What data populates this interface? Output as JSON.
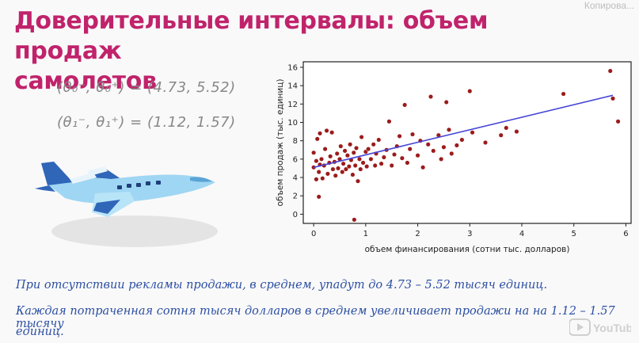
{
  "slide": {
    "title_line1": "Доверительные интервалы: объем продаж",
    "title_line2": "самолетов",
    "corner_label": "Копирова...",
    "formula_1": "(θ₀⁻, θ₀⁺) = (4.73, 5.52)",
    "formula_2": "(θ₁⁻, θ₁⁺) = (1.12, 1.57)",
    "note_line1": "При отсутствии рекламы продажи, в среднем, упадут до 4.73 – 5.52 тысяч единиц.",
    "note_line2": "Каждая потраченная сотня тысяч долларов в среднем увеличивает продажи на на 1.12 – 1.57 тысячу",
    "note_line3": "единиц.",
    "watermark": "YouTube",
    "colors": {
      "title": "#c0236b",
      "note": "#2c4fa3",
      "points": "#9b1b1b",
      "line": "#4646d6"
    },
    "plane_icon": "airplane-illustration"
  },
  "chart_data": {
    "type": "scatter",
    "title": "",
    "xlabel": "объем финансирования (сотни тыс. долларов)",
    "ylabel": "объем продаж (тыс. единиц)",
    "xlim": [
      -0.2,
      6.1
    ],
    "ylim": [
      -1,
      16.6
    ],
    "xticks": [
      0,
      1,
      2,
      3,
      4,
      5,
      6
    ],
    "yticks": [
      0,
      2,
      4,
      6,
      8,
      10,
      12,
      14,
      16
    ],
    "grid": false,
    "series": [
      {
        "points": [
          [
            0.0,
            5.1
          ],
          [
            0.0,
            6.7
          ],
          [
            0.05,
            3.8
          ],
          [
            0.05,
            5.8
          ],
          [
            0.07,
            8.2
          ],
          [
            0.1,
            1.9
          ],
          [
            0.1,
            4.6
          ],
          [
            0.12,
            5.4
          ],
          [
            0.12,
            8.8
          ],
          [
            0.15,
            6.0
          ],
          [
            0.17,
            3.9
          ],
          [
            0.2,
            5.3
          ],
          [
            0.22,
            7.1
          ],
          [
            0.25,
            9.1
          ],
          [
            0.27,
            4.4
          ],
          [
            0.3,
            5.6
          ],
          [
            0.32,
            6.3
          ],
          [
            0.35,
            8.9
          ],
          [
            0.37,
            4.9
          ],
          [
            0.4,
            5.7
          ],
          [
            0.42,
            4.2
          ],
          [
            0.45,
            6.6
          ],
          [
            0.47,
            5.0
          ],
          [
            0.5,
            6.0
          ],
          [
            0.52,
            7.4
          ],
          [
            0.55,
            4.6
          ],
          [
            0.57,
            5.5
          ],
          [
            0.6,
            6.9
          ],
          [
            0.62,
            4.9
          ],
          [
            0.65,
            6.4
          ],
          [
            0.68,
            5.2
          ],
          [
            0.7,
            7.6
          ],
          [
            0.72,
            5.9
          ],
          [
            0.75,
            4.3
          ],
          [
            0.77,
            6.7
          ],
          [
            0.78,
            -0.6
          ],
          [
            0.8,
            5.3
          ],
          [
            0.82,
            7.2
          ],
          [
            0.85,
            3.6
          ],
          [
            0.88,
            6.0
          ],
          [
            0.9,
            4.9
          ],
          [
            0.92,
            8.4
          ],
          [
            0.95,
            5.6
          ],
          [
            1.0,
            6.8
          ],
          [
            1.02,
            5.2
          ],
          [
            1.05,
            7.1
          ],
          [
            1.1,
            6.0
          ],
          [
            1.15,
            7.6
          ],
          [
            1.18,
            5.3
          ],
          [
            1.2,
            6.6
          ],
          [
            1.25,
            8.1
          ],
          [
            1.3,
            5.5
          ],
          [
            1.35,
            6.2
          ],
          [
            1.4,
            7.0
          ],
          [
            1.45,
            10.1
          ],
          [
            1.5,
            5.3
          ],
          [
            1.55,
            6.5
          ],
          [
            1.6,
            7.4
          ],
          [
            1.65,
            8.5
          ],
          [
            1.7,
            6.1
          ],
          [
            1.75,
            11.9
          ],
          [
            1.8,
            5.6
          ],
          [
            1.85,
            7.1
          ],
          [
            1.9,
            8.7
          ],
          [
            2.0,
            6.4
          ],
          [
            2.05,
            8.0
          ],
          [
            2.1,
            5.1
          ],
          [
            2.2,
            7.6
          ],
          [
            2.25,
            12.8
          ],
          [
            2.3,
            6.9
          ],
          [
            2.4,
            8.6
          ],
          [
            2.45,
            6.0
          ],
          [
            2.5,
            7.3
          ],
          [
            2.55,
            12.2
          ],
          [
            2.6,
            9.2
          ],
          [
            2.65,
            6.6
          ],
          [
            2.75,
            7.5
          ],
          [
            2.85,
            8.1
          ],
          [
            3.0,
            13.4
          ],
          [
            3.05,
            8.9
          ],
          [
            3.3,
            7.8
          ],
          [
            3.6,
            8.6
          ],
          [
            3.7,
            9.4
          ],
          [
            3.9,
            9.0
          ],
          [
            4.8,
            13.1
          ],
          [
            5.7,
            15.6
          ],
          [
            5.75,
            12.6
          ],
          [
            5.85,
            10.1
          ]
        ]
      }
    ],
    "fit_line": {
      "x": [
        0.0,
        5.75
      ],
      "y": [
        5.1,
        12.95
      ]
    }
  }
}
